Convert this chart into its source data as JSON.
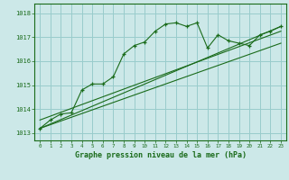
{
  "xlabel": "Graphe pression niveau de la mer (hPa)",
  "ylim": [
    1012.7,
    1018.4
  ],
  "xlim": [
    -0.5,
    23.5
  ],
  "yticks": [
    1013,
    1014,
    1015,
    1016,
    1017,
    1018
  ],
  "xticks": [
    0,
    1,
    2,
    3,
    4,
    5,
    6,
    7,
    8,
    9,
    10,
    11,
    12,
    13,
    14,
    15,
    16,
    17,
    18,
    19,
    20,
    21,
    22,
    23
  ],
  "bg_color": "#cce8e8",
  "grid_color": "#99cccc",
  "line_color": "#1a6b1a",
  "main_series_x": [
    0,
    1,
    2,
    3,
    4,
    5,
    6,
    7,
    8,
    9,
    10,
    11,
    12,
    13,
    14,
    15,
    16,
    17,
    18,
    19,
    20,
    21,
    22,
    23
  ],
  "main_series_y": [
    1013.2,
    1013.55,
    1013.8,
    1013.85,
    1014.8,
    1015.05,
    1015.05,
    1015.35,
    1016.3,
    1016.65,
    1016.8,
    1017.25,
    1017.55,
    1017.6,
    1017.45,
    1017.6,
    1016.55,
    1017.1,
    1016.85,
    1016.75,
    1016.65,
    1017.1,
    1017.25,
    1017.45
  ],
  "line1_x": [
    0,
    23
  ],
  "line1_y": [
    1013.2,
    1017.45
  ],
  "line2_x": [
    0,
    23
  ],
  "line2_y": [
    1013.55,
    1017.25
  ],
  "line3_x": [
    0,
    23
  ],
  "line3_y": [
    1013.2,
    1016.75
  ]
}
